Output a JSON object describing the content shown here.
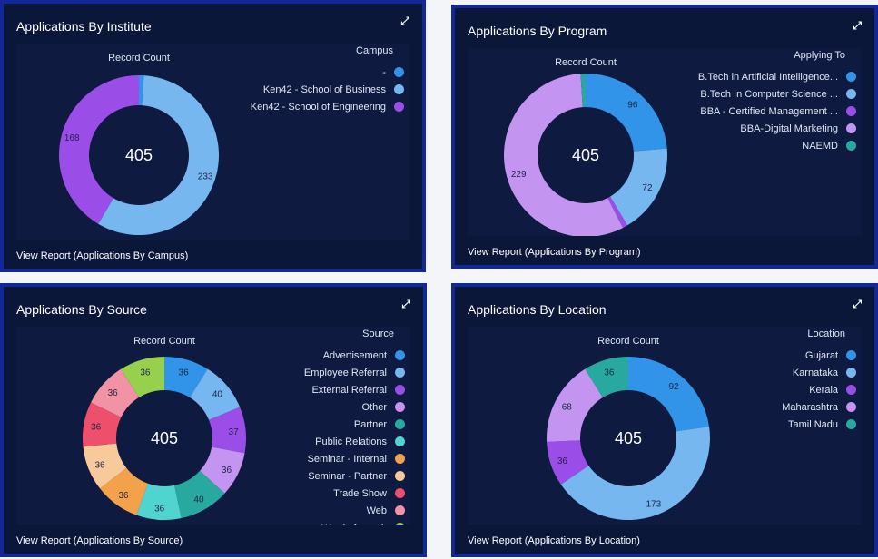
{
  "panels": [
    {
      "title": "Applications By Institute",
      "expand_icon": "expand-icon",
      "record_count_label": "Record Count",
      "legend_title": "Campus",
      "footer": "View Report (Applications By Campus)",
      "chart_data": {
        "type": "donut",
        "total": 405,
        "categories": [
          "-",
          "Ken42 - School of Business",
          "Ken42 - School of Engineering"
        ],
        "values": [
          4,
          233,
          168
        ],
        "colors": [
          "#3294e8",
          "#76b7f0",
          "#9b4de8"
        ]
      }
    },
    {
      "title": "Applications By Program",
      "expand_icon": "expand-icon",
      "record_count_label": "Record Count",
      "legend_title": "Applying To",
      "footer": "View Report (Applications By Program)",
      "chart_data": {
        "type": "donut",
        "total": 405,
        "categories": [
          "B.Tech in Artificial Intelligence...",
          "B.Tech In Computer Science ...",
          "BBA - Certified Management ...",
          "BBA-Digital Marketing",
          "NAEMD"
        ],
        "values": [
          96,
          72,
          4,
          229,
          4
        ],
        "colors": [
          "#3294e8",
          "#76b7f0",
          "#9b4de8",
          "#c394f0",
          "#27a9a0"
        ]
      }
    },
    {
      "title": "Applications By Source",
      "expand_icon": "expand-icon",
      "record_count_label": "Record Count",
      "legend_title": "Source",
      "footer": "View Report (Applications By Source)",
      "chart_data": {
        "type": "donut",
        "total": 405,
        "categories": [
          "Advertisement",
          "Employee Referral",
          "External Referral",
          "Other",
          "Partner",
          "Public Relations",
          "Seminar - Internal",
          "Seminar - Partner",
          "Trade Show",
          "Web",
          "Word of mouth"
        ],
        "values": [
          36,
          40,
          37,
          36,
          40,
          36,
          36,
          36,
          36,
          36,
          36
        ],
        "colors": [
          "#3294e8",
          "#76b7f0",
          "#9b4de8",
          "#c394f0",
          "#27a9a0",
          "#4fd4cf",
          "#f3a24b",
          "#f8c99a",
          "#ee4f6a",
          "#f293a5",
          "#96d04d"
        ]
      }
    },
    {
      "title": "Applications By Location",
      "expand_icon": "expand-icon",
      "record_count_label": "Record Count",
      "legend_title": "Location",
      "footer": "View Report (Applications By Location)",
      "chart_data": {
        "type": "donut",
        "total": 405,
        "categories": [
          "Gujarat",
          "Karnataka",
          "Kerala",
          "Maharashtra",
          "Tamil Nadu"
        ],
        "values": [
          92,
          173,
          36,
          68,
          36
        ],
        "colors": [
          "#3294e8",
          "#76b7f0",
          "#9b4de8",
          "#c394f0",
          "#27a9a0"
        ]
      }
    }
  ]
}
